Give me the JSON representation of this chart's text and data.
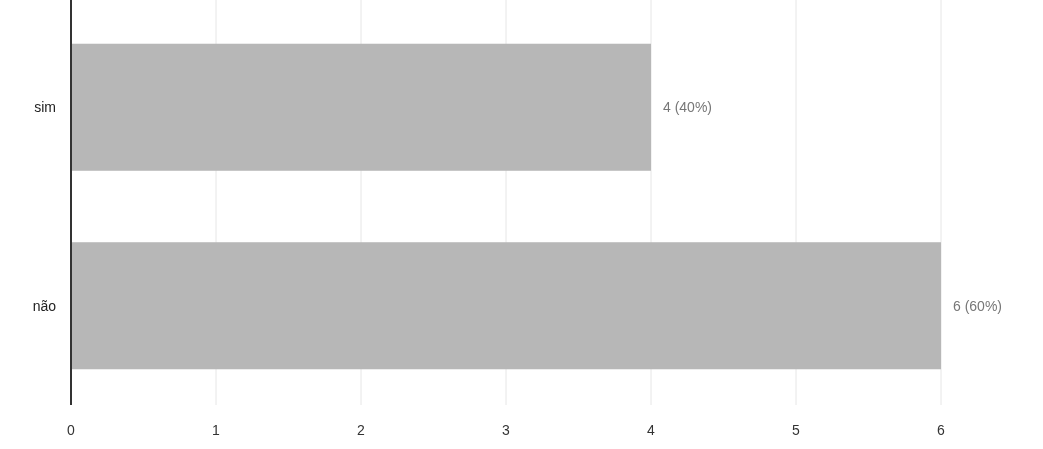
{
  "chart_data": {
    "type": "bar",
    "orientation": "horizontal",
    "categories": [
      "sim",
      "não"
    ],
    "values": [
      4,
      6
    ],
    "color": "#b7b7b7",
    "value_labels": [
      "4 (40%)",
      "6 (60%)"
    ],
    "xlim": [
      0,
      6
    ],
    "xticks": [
      0,
      1,
      2,
      3,
      4,
      5,
      6
    ],
    "grid": "x"
  }
}
